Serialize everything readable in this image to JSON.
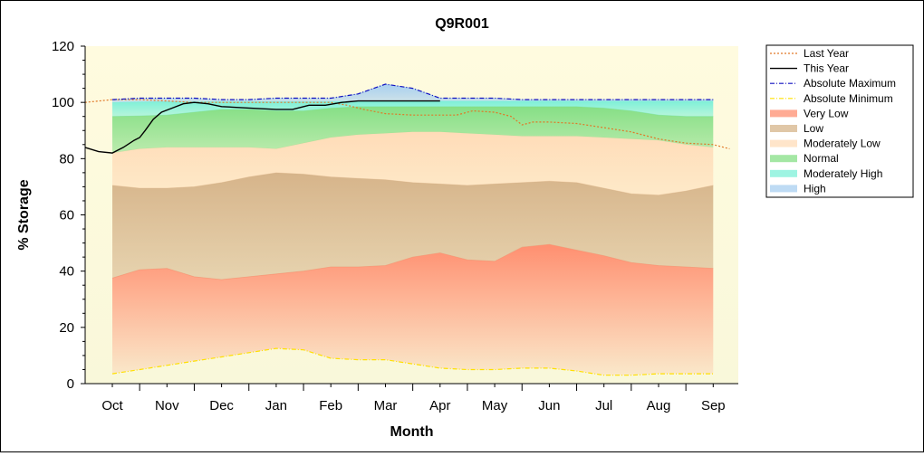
{
  "chart_data": {
    "type": "area",
    "title": "Q9R001",
    "xlabel": "Month",
    "ylabel": "% Storage",
    "ylim": [
      0,
      120
    ],
    "yticks": [
      0,
      20,
      40,
      60,
      80,
      100,
      120
    ],
    "categories": [
      "Oct",
      "Nov",
      "Dec",
      "Jan",
      "Feb",
      "Mar",
      "Apr",
      "May",
      "Jun",
      "Jul",
      "Aug",
      "Sep"
    ],
    "grid": false,
    "legend_position": "right",
    "bands": [
      {
        "name": "Very Low",
        "color": "#ff8f70",
        "x": [
          0,
          0.5,
          1,
          1.5,
          2,
          2.5,
          3,
          3.5,
          4,
          4.5,
          5,
          5.5,
          6,
          6.5,
          7,
          7.5,
          8,
          8.5,
          9,
          9.5,
          10,
          10.5,
          11
        ],
        "lower": [
          3.5,
          5,
          6.5,
          8,
          9.5,
          11,
          12.5,
          12,
          9,
          8.5,
          8.5,
          7,
          5.5,
          5,
          5,
          5.5,
          5.5,
          4.5,
          3,
          3,
          3.5,
          3.5,
          3.5
        ],
        "upper": [
          37.5,
          40.5,
          41,
          38,
          37,
          38,
          39,
          40,
          41.5,
          41.5,
          42,
          45,
          46.5,
          44,
          43.5,
          48.5,
          49.5,
          47.5,
          45.5,
          43,
          42,
          41.5,
          41
        ]
      },
      {
        "name": "Low",
        "color": "#d6b48a",
        "x": [
          0,
          0.5,
          1,
          1.5,
          2,
          2.5,
          3,
          3.5,
          4,
          4.5,
          5,
          5.5,
          6,
          6.5,
          7,
          7.5,
          8,
          8.5,
          9,
          9.5,
          10,
          10.5,
          11
        ],
        "lower": [
          37.5,
          40.5,
          41,
          38,
          37,
          38,
          39,
          40,
          41.5,
          41.5,
          42,
          45,
          46.5,
          44,
          43.5,
          48.5,
          49.5,
          47.5,
          45.5,
          43,
          42,
          41.5,
          41
        ],
        "upper": [
          70.5,
          69.5,
          69.5,
          70,
          71.5,
          73.5,
          75,
          74.5,
          73.5,
          73,
          72.5,
          71.5,
          71,
          70.5,
          71,
          71.5,
          72,
          71.5,
          69.5,
          67.5,
          67,
          68.5,
          70.5
        ]
      },
      {
        "name": "Moderately Low",
        "color": "#ffdcb8",
        "x": [
          0,
          0.5,
          1,
          1.5,
          2,
          2.5,
          3,
          3.5,
          4,
          4.5,
          5,
          5.5,
          6,
          6.5,
          7,
          7.5,
          8,
          8.5,
          9,
          9.5,
          10,
          10.5,
          11
        ],
        "lower": [
          70.5,
          69.5,
          69.5,
          70,
          71.5,
          73.5,
          75,
          74.5,
          73.5,
          73,
          72.5,
          71.5,
          71,
          70.5,
          71,
          71.5,
          72,
          71.5,
          69.5,
          67.5,
          67,
          68.5,
          70.5
        ],
        "upper": [
          82,
          83.5,
          84,
          84,
          84,
          84,
          83.5,
          85.5,
          87.5,
          88.5,
          89,
          89.5,
          89.5,
          89,
          88.5,
          88,
          88,
          88,
          87.5,
          87,
          86.5,
          85,
          84
        ]
      },
      {
        "name": "Normal",
        "color": "#86df86",
        "x": [
          0,
          0.5,
          1,
          1.5,
          2,
          2.5,
          3,
          3.5,
          4,
          4.5,
          5,
          5.5,
          6,
          6.5,
          7,
          7.5,
          8,
          8.5,
          9,
          9.5,
          10,
          10.5,
          11
        ],
        "lower": [
          82,
          83.5,
          84,
          84,
          84,
          84,
          83.5,
          85.5,
          87.5,
          88.5,
          89,
          89.5,
          89.5,
          89,
          88.5,
          88,
          88,
          88,
          87.5,
          87,
          86.5,
          85,
          84
        ],
        "upper": [
          95,
          95.2,
          95.5,
          96.5,
          97.5,
          97.5,
          97,
          97,
          98,
          98.5,
          98.5,
          98.5,
          98.5,
          98.5,
          98.5,
          98.5,
          98.5,
          98.5,
          98,
          97,
          95.5,
          95,
          95
        ]
      },
      {
        "name": "Moderately High",
        "color": "#7ef0d8",
        "x": [
          0,
          0.5,
          1,
          1.5,
          2,
          2.5,
          3,
          3.5,
          4,
          4.5,
          5,
          5.5,
          6,
          6.5,
          7,
          7.5,
          8,
          8.5,
          9,
          9.5,
          10,
          10.5,
          11
        ],
        "lower": [
          95,
          95.2,
          95.5,
          96.5,
          97.5,
          97.5,
          97,
          97,
          98,
          98.5,
          98.5,
          98.5,
          98.5,
          98.5,
          98.5,
          98.5,
          98.5,
          98.5,
          98,
          97,
          95.5,
          95,
          95
        ],
        "upper": [
          100,
          100.2,
          100.3,
          100.3,
          100.3,
          100.3,
          100.3,
          100.3,
          100.3,
          100.5,
          100.5,
          100.5,
          100.5,
          100.5,
          100.5,
          100.5,
          100.5,
          100.5,
          100.5,
          100.5,
          100.5,
          100.5,
          100.5
        ]
      },
      {
        "name": "High",
        "color": "#a8cff0",
        "x": [
          0,
          0.5,
          1,
          1.5,
          2,
          2.5,
          3,
          3.5,
          4,
          4.5,
          5,
          5.5,
          6,
          6.5,
          7,
          7.5,
          8,
          8.5,
          9,
          9.5,
          10,
          10.5,
          11
        ],
        "lower": [
          100,
          100.2,
          100.3,
          100.3,
          100.3,
          100.3,
          100.3,
          100.3,
          100.3,
          100.5,
          100.5,
          100.5,
          100.5,
          100.5,
          100.5,
          100.5,
          100.5,
          100.5,
          100.5,
          100.5,
          100.5,
          100.5,
          100.5
        ],
        "upper": [
          101,
          101.5,
          101.5,
          101.5,
          101,
          101,
          101.5,
          101.5,
          101.5,
          103,
          106.5,
          105,
          101.5,
          101.5,
          101.5,
          101,
          101,
          101,
          101,
          101,
          101,
          101,
          101
        ]
      }
    ],
    "series": [
      {
        "name": "Last Year",
        "color": "#e07828",
        "style": "dotted",
        "x": [
          -0.5,
          0,
          0.5,
          1,
          1.5,
          2,
          2.5,
          3,
          3.5,
          4,
          4.3,
          4.6,
          5,
          5.5,
          6,
          6.3,
          6.6,
          7,
          7.3,
          7.5,
          7.7,
          8,
          8.5,
          9,
          9.5,
          10,
          10.5,
          11,
          11.3
        ],
        "values": [
          100,
          101,
          101,
          100.5,
          100,
          100,
          100,
          100,
          100,
          100,
          99,
          97.5,
          96,
          95.5,
          95.5,
          95.5,
          97,
          96.5,
          95,
          92,
          93,
          93,
          92.5,
          91,
          89.5,
          87,
          85.5,
          85,
          83.5
        ]
      },
      {
        "name": "This Year",
        "color": "#000000",
        "style": "solid",
        "x": [
          -0.5,
          -0.25,
          0,
          0.2,
          0.4,
          0.5,
          0.6,
          0.75,
          0.9,
          1.1,
          1.3,
          1.5,
          1.75,
          2,
          2.5,
          3,
          3.3,
          3.6,
          3.9,
          4.2,
          4.5,
          5,
          5.5,
          6
        ],
        "values": [
          84,
          82.5,
          82,
          84,
          86.5,
          87.5,
          90,
          94,
          96.5,
          98,
          99.5,
          100,
          99.5,
          98.5,
          98,
          97.5,
          97.5,
          99,
          99,
          100,
          100.5,
          100.5,
          100.5,
          100.5
        ]
      },
      {
        "name": "Absolute Maximum",
        "color": "#1010c0",
        "style": "dashdot",
        "x": [
          0,
          0.5,
          1,
          1.5,
          2,
          2.5,
          3,
          3.5,
          4,
          4.5,
          5,
          5.5,
          6,
          6.5,
          7,
          7.5,
          8,
          8.5,
          9,
          9.5,
          10,
          10.5,
          11
        ],
        "values": [
          101,
          101.5,
          101.5,
          101.5,
          101,
          101,
          101.5,
          101.5,
          101.5,
          103,
          106.5,
          105,
          101.5,
          101.5,
          101.5,
          101,
          101,
          101,
          101,
          101,
          101,
          101,
          101
        ]
      },
      {
        "name": "Absolute Minimum",
        "color": "#ffe000",
        "style": "dashdot",
        "x": [
          0,
          0.5,
          1,
          1.5,
          2,
          2.5,
          3,
          3.5,
          4,
          4.5,
          5,
          5.5,
          6,
          6.5,
          7,
          7.5,
          8,
          8.5,
          9,
          9.5,
          10,
          10.5,
          11
        ],
        "values": [
          3.5,
          5,
          6.5,
          8,
          9.5,
          11,
          12.5,
          12,
          9,
          8.5,
          8.5,
          7,
          5.5,
          5,
          5,
          5.5,
          5.5,
          4.5,
          3,
          3,
          3.5,
          3.5,
          3.5
        ]
      }
    ],
    "legend": [
      {
        "label": "Last Year",
        "kind": "line",
        "color": "#e07828",
        "style": "dotted"
      },
      {
        "label": "This Year",
        "kind": "line",
        "color": "#000000",
        "style": "solid"
      },
      {
        "label": "Absolute Maximum",
        "kind": "line",
        "color": "#1010c0",
        "style": "dashdot"
      },
      {
        "label": "Absolute Minimum",
        "kind": "line",
        "color": "#ffe000",
        "style": "dashdot"
      },
      {
        "label": "Very Low",
        "kind": "band",
        "color": "#ff8f70"
      },
      {
        "label": "Low",
        "kind": "band",
        "color": "#d6b48a"
      },
      {
        "label": "Moderately Low",
        "kind": "band",
        "color": "#ffdcb8"
      },
      {
        "label": "Normal",
        "kind": "band",
        "color": "#86df86"
      },
      {
        "label": "Moderately High",
        "kind": "band",
        "color": "#7ef0d8"
      },
      {
        "label": "High",
        "kind": "band",
        "color": "#a8cff0"
      }
    ]
  }
}
